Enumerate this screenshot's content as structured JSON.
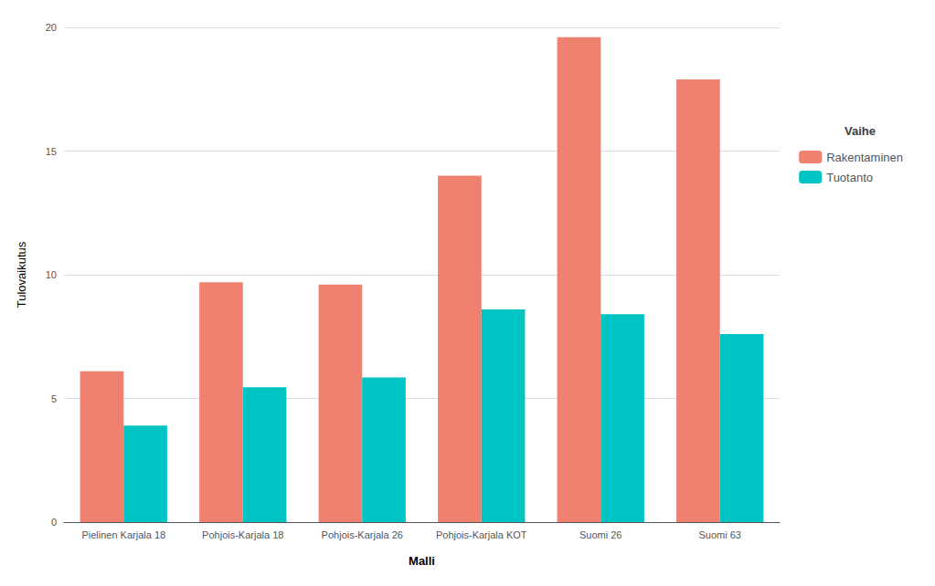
{
  "chart_data": {
    "type": "bar",
    "categories": [
      "Pielinen Karjala 18",
      "Pohjois-Karjala 18",
      "Pohjois-Karjala 26",
      "Pohjois-Karjala KOT",
      "Suomi 26",
      "Suomi 63"
    ],
    "series": [
      {
        "name": "Rakentaminen",
        "color": "#F08070",
        "values": [
          6.1,
          9.7,
          9.6,
          14.0,
          19.6,
          17.9
        ]
      },
      {
        "name": "Tuotanto",
        "color": "#00C4C4",
        "values": [
          3.9,
          5.45,
          5.85,
          8.6,
          8.4,
          7.6
        ]
      }
    ],
    "xlabel": "Malli",
    "ylabel": "Tulovaikutus",
    "legend_title": "Vaihe",
    "legend": "right",
    "ylim": [
      0,
      20
    ],
    "yticks": [
      0,
      5,
      10,
      15,
      20
    ],
    "grid": true
  }
}
